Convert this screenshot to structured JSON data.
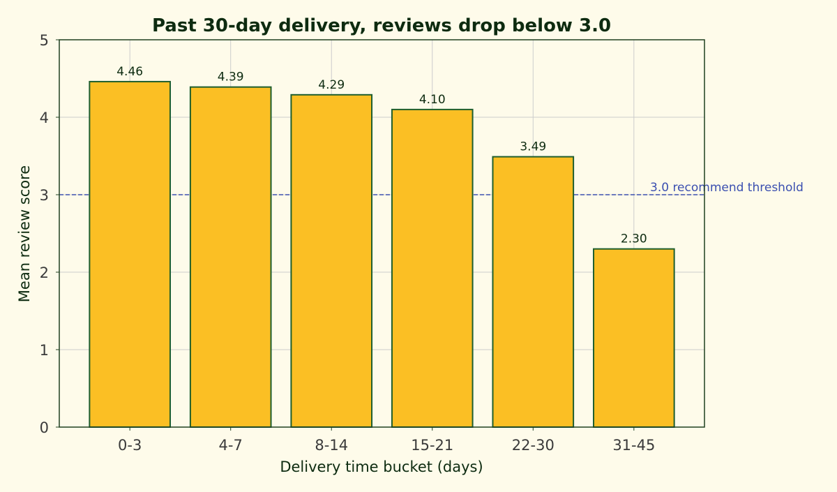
{
  "chart_data": {
    "type": "bar",
    "title": "Past 30-day delivery, reviews drop below 3.0",
    "xlabel": "Delivery time bucket (days)",
    "ylabel": "Mean review score",
    "categories": [
      "0-3",
      "4-7",
      "8-14",
      "15-21",
      "22-30",
      "31-45"
    ],
    "values": [
      4.46,
      4.39,
      4.29,
      4.1,
      3.49,
      2.3
    ],
    "data_labels": [
      "4.46",
      "4.39",
      "4.29",
      "4.10",
      "3.49",
      "2.30"
    ],
    "ylim": [
      0,
      5
    ],
    "yticks": [
      0,
      1,
      2,
      3,
      4,
      5
    ],
    "grid": true,
    "threshold": {
      "value": 3.0,
      "label": "3.0 recommend threshold"
    }
  },
  "colors": {
    "background": "#fefbea",
    "bar_fill": "#fbbf24",
    "bar_edge": "#1e5e2e",
    "axes_edge": "#1e4020",
    "grid": "#cccccc",
    "threshold": "#3b4fb0",
    "text_dark": "#0d2b10",
    "tick_text": "#3a3a3a"
  }
}
